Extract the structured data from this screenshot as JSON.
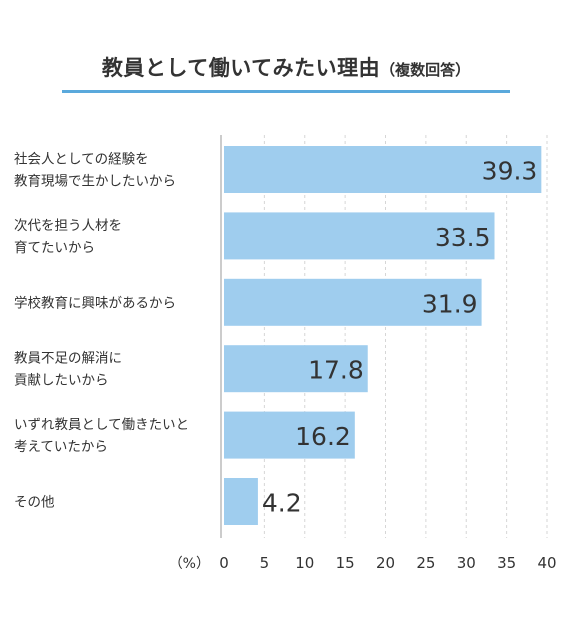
{
  "chart_data": {
    "type": "bar",
    "orientation": "horizontal",
    "title": "教員として働いてみたい理由",
    "subtitle": "（複数回答）",
    "categories": [
      [
        "社会人としての経験を",
        "教育現場で生かしたいから"
      ],
      [
        "次代を担う人材を",
        "育てたいから"
      ],
      [
        "学校教育に興味があるから"
      ],
      [
        "教員不足の解消に",
        "貢献したいから"
      ],
      [
        "いずれ教員として働きたいと",
        "考えていたから"
      ],
      [
        "その他"
      ]
    ],
    "values": [
      39.3,
      33.5,
      31.9,
      17.8,
      16.2,
      4.2
    ],
    "value_labels": [
      "39.3",
      "33.5",
      "31.9",
      "17.8",
      "16.2",
      "4.2"
    ],
    "xlim": [
      0,
      40
    ],
    "x_ticks": [
      0,
      5,
      10,
      15,
      20,
      25,
      30,
      35,
      40
    ],
    "unit_label": "（%）",
    "grid": true,
    "colors": {
      "bar": "#9fcdee",
      "accent": "#5aa9dc",
      "grid": "#d6d6d6",
      "axis": "#bbbbbb",
      "text": "#333333"
    }
  }
}
